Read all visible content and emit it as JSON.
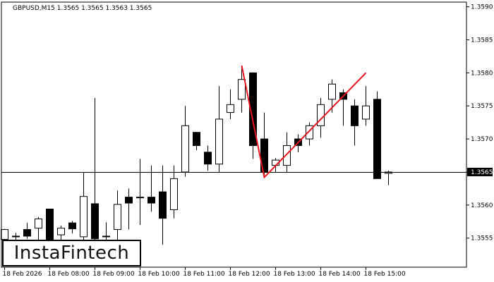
{
  "chart_data": {
    "type": "candlestick",
    "title": "GBPUSD,M15  1.3565 1.3565 1.3563 1.3565",
    "current_price_label": "1.3565",
    "y_ticks": [
      "1.3590",
      "1.3585",
      "1.3580",
      "1.3575",
      "1.3570",
      "1.3565",
      "1.3560",
      "1.3555"
    ],
    "x_ticks": [
      "18 Feb 2026",
      "18 Feb 08:00",
      "18 Feb 09:00",
      "18 Feb 10:00",
      "18 Feb 11:00",
      "18 Feb 12:00",
      "18 Feb 13:00",
      "18 Feb 14:00",
      "18 Feb 15:00"
    ],
    "ylim": [
      1.35506,
      1.35907
    ],
    "horizontal_line": 1.3565,
    "pattern_line": [
      {
        "bar": 21,
        "price": 1.35811
      },
      {
        "bar": 23,
        "price": 1.35642
      },
      {
        "bar": 32,
        "price": 1.358
      }
    ],
    "candles": [
      {
        "o": 1.35548,
        "h": 1.35564,
        "l": 1.35535,
        "c": 1.35563
      },
      {
        "o": 1.35552,
        "h": 1.35558,
        "l": 1.35545,
        "c": 1.35553
      },
      {
        "o": 1.35563,
        "h": 1.35573,
        "l": 1.35549,
        "c": 1.35553
      },
      {
        "o": 1.35565,
        "h": 1.35582,
        "l": 1.35547,
        "c": 1.35579
      },
      {
        "o": 1.35594,
        "h": 1.35594,
        "l": 1.35525,
        "c": 1.3553
      },
      {
        "o": 1.35555,
        "h": 1.35569,
        "l": 1.35534,
        "c": 1.35565
      },
      {
        "o": 1.35573,
        "h": 1.35576,
        "l": 1.35557,
        "c": 1.35564
      },
      {
        "o": 1.35552,
        "h": 1.3565,
        "l": 1.3553,
        "c": 1.35613
      },
      {
        "o": 1.35602,
        "h": 1.35762,
        "l": 1.3554,
        "c": 1.35549
      },
      {
        "o": 1.35553,
        "h": 1.35574,
        "l": 1.35512,
        "c": 1.35553
      },
      {
        "o": 1.35563,
        "h": 1.35622,
        "l": 1.35546,
        "c": 1.35601
      },
      {
        "o": 1.35612,
        "h": 1.35625,
        "l": 1.35563,
        "c": 1.35603
      },
      {
        "o": 1.35612,
        "h": 1.3567,
        "l": 1.3557,
        "c": 1.35612
      },
      {
        "o": 1.35612,
        "h": 1.3566,
        "l": 1.3559,
        "c": 1.35603
      },
      {
        "o": 1.3562,
        "h": 1.3566,
        "l": 1.3554,
        "c": 1.3558
      },
      {
        "o": 1.35593,
        "h": 1.3566,
        "l": 1.3558,
        "c": 1.3564
      },
      {
        "o": 1.3565,
        "h": 1.3575,
        "l": 1.35643,
        "c": 1.3572
      },
      {
        "o": 1.3571,
        "h": 1.3571,
        "l": 1.35683,
        "c": 1.3569
      },
      {
        "o": 1.3568,
        "h": 1.3569,
        "l": 1.35652,
        "c": 1.35662
      },
      {
        "o": 1.35662,
        "h": 1.3578,
        "l": 1.3565,
        "c": 1.3573
      },
      {
        "o": 1.3574,
        "h": 1.35775,
        "l": 1.3573,
        "c": 1.35752
      },
      {
        "o": 1.3576,
        "h": 1.3581,
        "l": 1.3574,
        "c": 1.3579
      },
      {
        "o": 1.358,
        "h": 1.358,
        "l": 1.3567,
        "c": 1.3569
      },
      {
        "o": 1.357,
        "h": 1.3574,
        "l": 1.35645,
        "c": 1.3565
      },
      {
        "o": 1.3566,
        "h": 1.35671,
        "l": 1.3565,
        "c": 1.35668
      },
      {
        "o": 1.3566,
        "h": 1.3571,
        "l": 1.3565,
        "c": 1.3569
      },
      {
        "o": 1.357,
        "h": 1.35707,
        "l": 1.3568,
        "c": 1.3569
      },
      {
        "o": 1.357,
        "h": 1.35725,
        "l": 1.3569,
        "c": 1.3572
      },
      {
        "o": 1.3572,
        "h": 1.35762,
        "l": 1.35702,
        "c": 1.35752
      },
      {
        "o": 1.3576,
        "h": 1.3579,
        "l": 1.3574,
        "c": 1.35783
      },
      {
        "o": 1.3577,
        "h": 1.35775,
        "l": 1.3572,
        "c": 1.3576
      },
      {
        "o": 1.3575,
        "h": 1.3576,
        "l": 1.3569,
        "c": 1.3572
      },
      {
        "o": 1.3573,
        "h": 1.3578,
        "l": 1.3572,
        "c": 1.3575
      },
      {
        "o": 1.3576,
        "h": 1.35772,
        "l": 1.3564,
        "c": 1.3564
      },
      {
        "o": 1.35648,
        "h": 1.35652,
        "l": 1.3563,
        "c": 1.3565
      }
    ],
    "colors": {
      "bull_fill": "#ffffff",
      "bear_fill": "#000000",
      "candle_line": "#000000",
      "pattern_line": "#e8141c",
      "price_label_bg": "#000000",
      "price_label_text": "#ffffff"
    }
  },
  "logo": {
    "text": "InstaFintech"
  }
}
